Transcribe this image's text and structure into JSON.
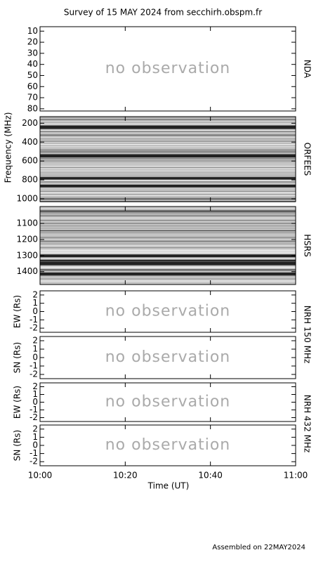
{
  "title": "Survey of 15 MAY 2024 from secchirh.obspm.fr",
  "footer": "Assembled on 22MAY2024",
  "ylabel": "Frequency (MHz)",
  "x_axis": {
    "label": "Time (UT)",
    "xlim": [
      "10:00",
      "11:00"
    ],
    "xticks": [
      "10:00",
      "10:20",
      "10:40",
      "11:00"
    ]
  },
  "chart_data": [
    {
      "type": "empty",
      "name": "NDA",
      "ylim": [
        6,
        82
      ],
      "inverted": true,
      "yticks": [
        10,
        20,
        30,
        40,
        50,
        60,
        70,
        80
      ],
      "annotation": "no observation"
    },
    {
      "type": "spectrogram",
      "name": "ORFEES",
      "ylim": [
        130,
        1030
      ],
      "inverted": true,
      "yticks": [
        200,
        400,
        600,
        800,
        1000
      ]
    },
    {
      "type": "spectrogram",
      "name": "HSRS",
      "ylim": [
        995,
        1480
      ],
      "inverted": true,
      "yticks": [
        1100,
        1200,
        1300,
        1400
      ]
    },
    {
      "type": "empty",
      "name": "NRH 150 MHz",
      "ylabel": "EW (Rs)",
      "ylim": [
        -2.5,
        2.5
      ],
      "yticks": [
        -2,
        -1,
        0,
        1,
        2
      ],
      "annotation": "no observation"
    },
    {
      "type": "empty",
      "ylabel": "SN (Rs)",
      "ylim": [
        -2.5,
        2.5
      ],
      "yticks": [
        -2,
        -1,
        0,
        1,
        2
      ],
      "annotation": "no observation"
    },
    {
      "type": "empty",
      "name": "NRH 432 MHz",
      "ylabel": "EW (Rs)",
      "ylim": [
        -2.5,
        2.5
      ],
      "yticks": [
        -2,
        -1,
        0,
        1,
        2
      ],
      "annotation": "no observation"
    },
    {
      "type": "empty",
      "ylabel": "SN (Rs)",
      "ylim": [
        -2.5,
        2.5
      ],
      "yticks": [
        -2,
        -1,
        0,
        1,
        2
      ],
      "annotation": "no observation"
    }
  ]
}
